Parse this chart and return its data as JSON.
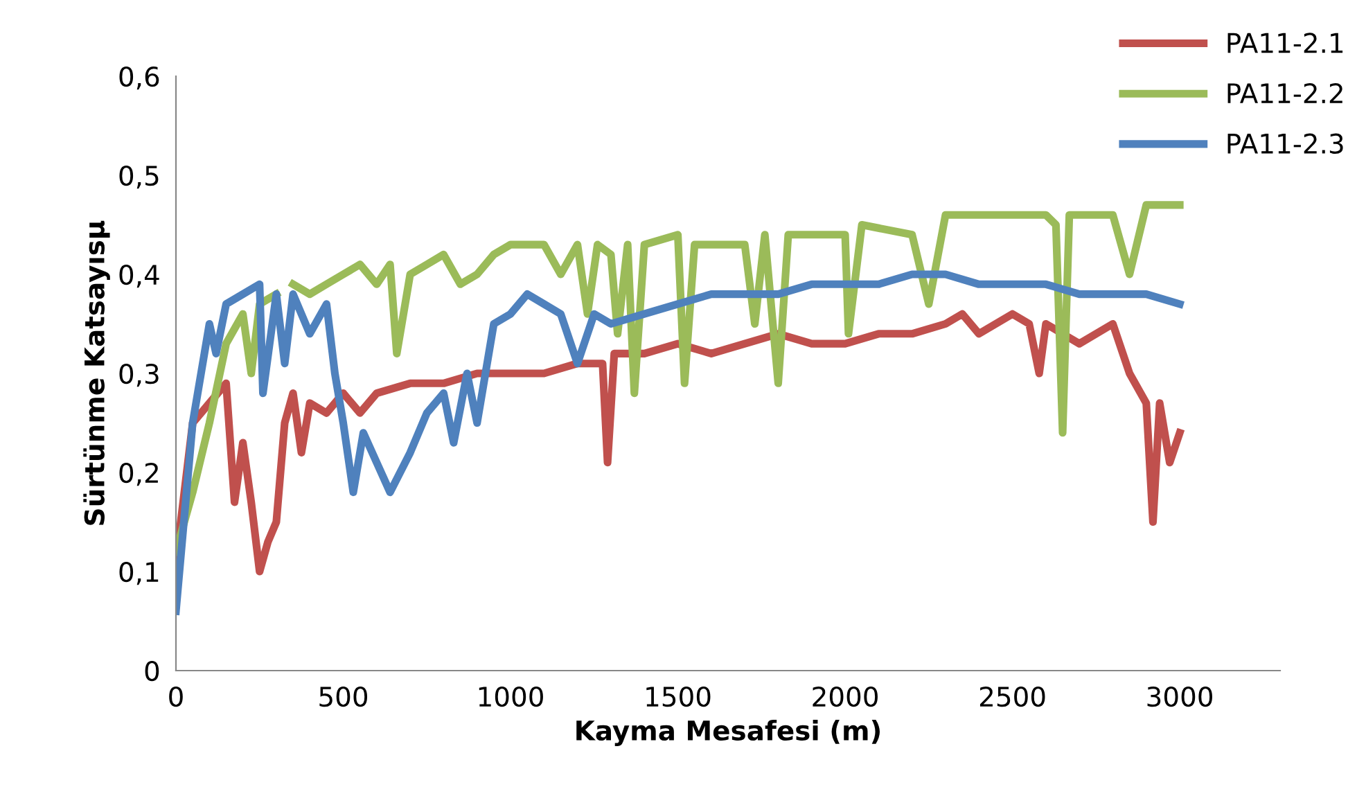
{
  "chart_data": {
    "type": "line",
    "xlabel": "Kayma Mesafesi (m)",
    "ylabel": "Sürtünme Katsayısµ",
    "xlim": [
      0,
      3300
    ],
    "xticks": [
      0,
      500,
      1000,
      1500,
      2000,
      2500,
      3000
    ],
    "ylim": [
      0,
      0.6
    ],
    "yticks": [
      0,
      {
        "value": 0.1,
        "label": "0,1"
      },
      {
        "value": 0.2,
        "label": "0,2"
      },
      {
        "value": 0.3,
        "label": "0,3"
      },
      {
        "value": 0.4,
        "label": "0,4"
      },
      {
        "value": 0.5,
        "label": "0,5"
      },
      {
        "value": 0.6,
        "label": "0,6"
      }
    ],
    "grid": false,
    "legend": "top right",
    "marker": "none",
    "line_style": "solid",
    "series": [
      {
        "name": "PA11-2.1",
        "color": "#c0504d",
        "x": [
          0,
          50,
          100,
          150,
          175,
          200,
          225,
          250,
          275,
          300,
          325,
          350,
          375,
          400,
          450,
          500,
          550,
          600,
          700,
          800,
          900,
          1000,
          1100,
          1200,
          1275,
          1290,
          1310,
          1400,
          1500,
          1600,
          1700,
          1800,
          1900,
          2000,
          2100,
          2200,
          2300,
          2350,
          2400,
          2500,
          2550,
          2580,
          2600,
          2700,
          2800,
          2850,
          2900,
          2920,
          2940,
          2970,
          3000
        ],
        "values": [
          0.11,
          0.25,
          0.27,
          0.29,
          0.17,
          0.23,
          0.17,
          0.1,
          0.13,
          0.15,
          0.25,
          0.28,
          0.22,
          0.27,
          0.26,
          0.28,
          0.26,
          0.28,
          0.29,
          0.29,
          0.3,
          0.3,
          0.3,
          0.31,
          0.31,
          0.21,
          0.32,
          0.32,
          0.33,
          0.32,
          0.33,
          0.34,
          0.33,
          0.33,
          0.34,
          0.34,
          0.35,
          0.36,
          0.34,
          0.36,
          0.35,
          0.3,
          0.35,
          0.33,
          0.35,
          0.3,
          0.27,
          0.15,
          0.27,
          0.21,
          0.24
        ]
      },
      {
        "name": "PA11-2.2",
        "color": "#9bbb59",
        "x": [
          0,
          50,
          100,
          150,
          200,
          225,
          250,
          300,
          330,
          350,
          400,
          450,
          500,
          550,
          600,
          640,
          660,
          700,
          750,
          800,
          850,
          900,
          950,
          1000,
          1100,
          1150,
          1200,
          1230,
          1260,
          1300,
          1320,
          1350,
          1370,
          1400,
          1500,
          1520,
          1550,
          1700,
          1730,
          1760,
          1800,
          1830,
          2000,
          2010,
          2050,
          2200,
          2250,
          2300,
          2500,
          2600,
          2630,
          2650,
          2670,
          2800,
          2850,
          2900,
          3000
        ],
        "values": [
          0.12,
          0.18,
          0.25,
          0.33,
          0.36,
          0.3,
          0.37,
          0.38,
          null,
          0.39,
          0.38,
          0.39,
          0.4,
          0.41,
          0.39,
          0.41,
          0.32,
          0.4,
          0.41,
          0.42,
          0.39,
          0.4,
          0.42,
          0.43,
          0.43,
          0.4,
          0.43,
          0.36,
          0.43,
          0.42,
          0.34,
          0.43,
          0.28,
          0.43,
          0.44,
          0.29,
          0.43,
          0.43,
          0.35,
          0.44,
          0.29,
          0.44,
          0.44,
          0.34,
          0.45,
          0.44,
          0.37,
          0.46,
          0.46,
          0.46,
          0.45,
          0.24,
          0.46,
          0.46,
          0.4,
          0.47,
          0.47
        ]
      },
      {
        "name": "PA11-2.3",
        "color": "#4f81bd",
        "x": [
          0,
          50,
          100,
          120,
          150,
          200,
          250,
          260,
          300,
          325,
          350,
          400,
          450,
          475,
          500,
          530,
          560,
          600,
          640,
          700,
          750,
          800,
          830,
          870,
          900,
          950,
          1000,
          1050,
          1100,
          1150,
          1200,
          1250,
          1300,
          1400,
          1500,
          1600,
          1700,
          1800,
          1900,
          2000,
          2100,
          2200,
          2300,
          2400,
          2500,
          2600,
          2700,
          2800,
          2900,
          3000
        ],
        "values": [
          0.06,
          0.25,
          0.35,
          0.32,
          0.37,
          0.38,
          0.39,
          0.28,
          0.38,
          0.31,
          0.38,
          0.34,
          0.37,
          0.3,
          0.25,
          0.18,
          0.24,
          0.21,
          0.18,
          0.22,
          0.26,
          0.28,
          0.23,
          0.3,
          0.25,
          0.35,
          0.36,
          0.38,
          0.37,
          0.36,
          0.31,
          0.36,
          0.35,
          0.36,
          0.37,
          0.38,
          0.38,
          0.38,
          0.39,
          0.39,
          0.39,
          0.4,
          0.4,
          0.39,
          0.39,
          0.39,
          0.38,
          0.38,
          0.38,
          0.37
        ]
      }
    ]
  }
}
